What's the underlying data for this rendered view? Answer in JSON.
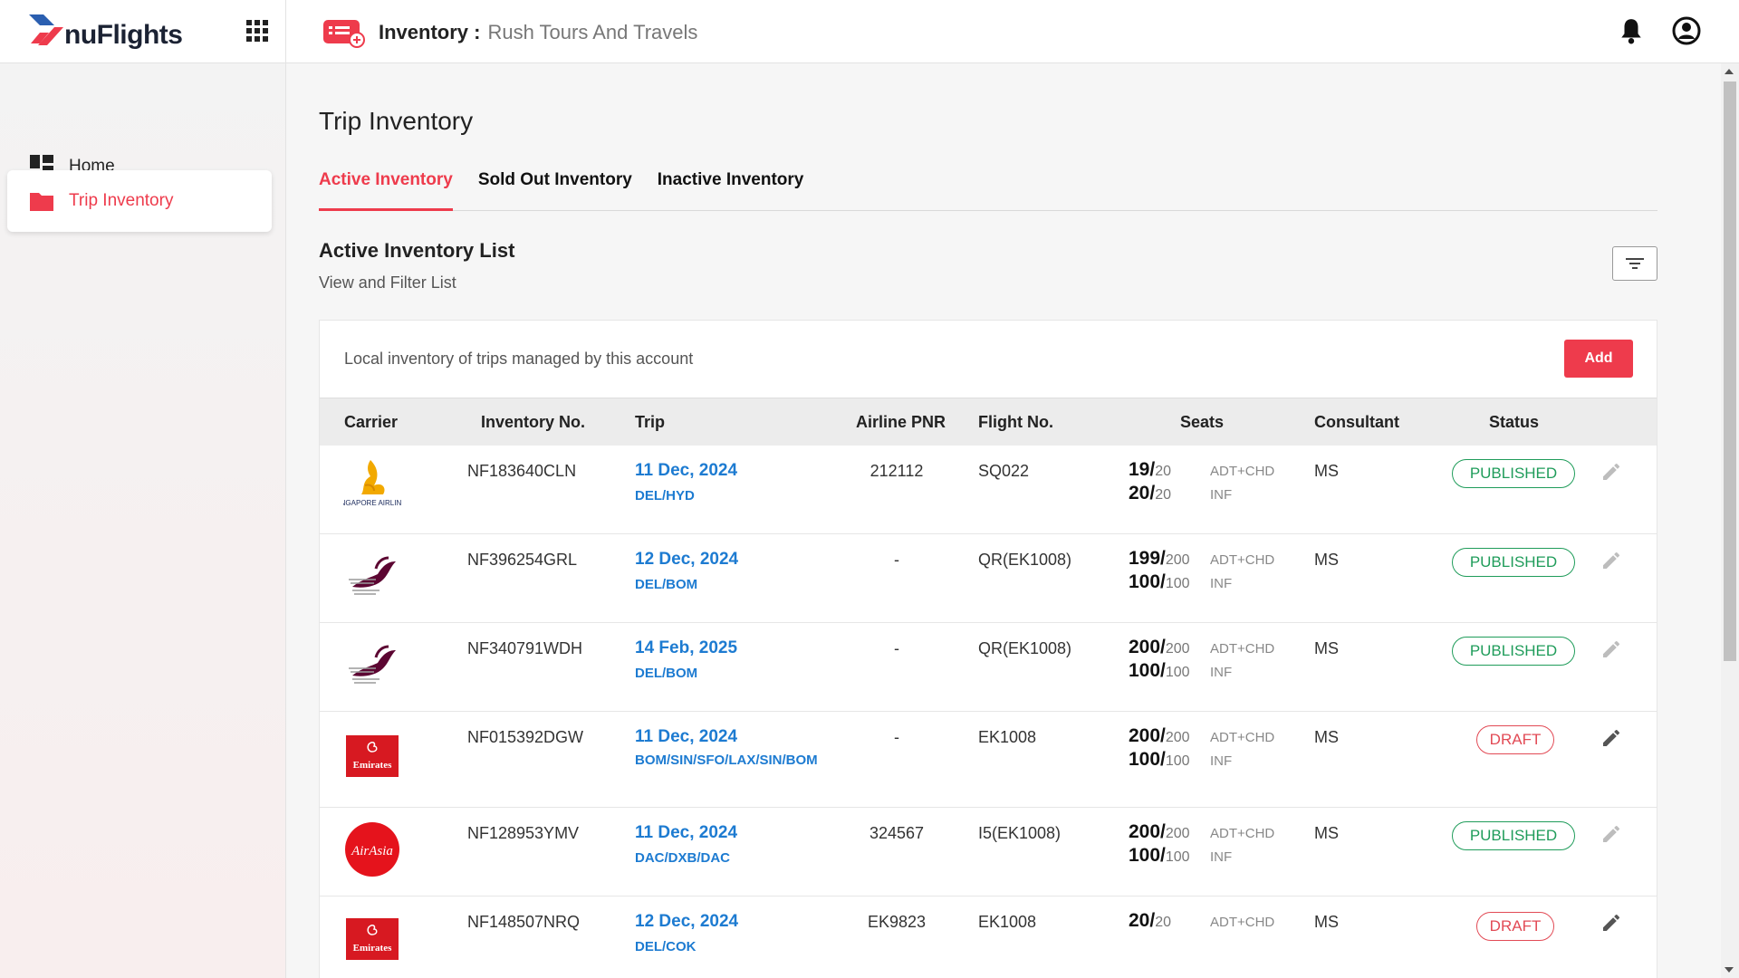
{
  "brand": {
    "name": "nuFlights"
  },
  "header": {
    "title": "Inventory :",
    "subtitle": "Rush Tours And Travels"
  },
  "sidebar": {
    "items": [
      {
        "label": "Home",
        "icon": "dashboard-icon",
        "active": false
      },
      {
        "label": "Trip Inventory",
        "icon": "folder-icon",
        "active": true
      }
    ]
  },
  "page": {
    "title": "Trip Inventory"
  },
  "tabs": [
    {
      "label": "Active Inventory",
      "active": true
    },
    {
      "label": "Sold Out Inventory",
      "active": false
    },
    {
      "label": "Inactive Inventory",
      "active": false
    }
  ],
  "list": {
    "title": "Active Inventory List",
    "subtitle": "View and Filter List",
    "description": "Local inventory of trips managed by this account",
    "add_label": "Add"
  },
  "table": {
    "columns": [
      "Carrier",
      "Inventory No.",
      "Trip",
      "Airline PNR",
      "Flight No.",
      "Seats",
      "Consultant",
      "Status"
    ],
    "rows": [
      {
        "carrier": "Singapore Airlines",
        "carrier_text": "SINGAPORE AIRLINES",
        "inventory_no": "NF183640CLN",
        "date": "11 Dec, 2024",
        "route": "DEL/HYD",
        "pnr": "212112",
        "flight": "SQ022",
        "seats": [
          {
            "avail": "19/",
            "total": "20",
            "type": "ADT+CHD"
          },
          {
            "avail": "20/",
            "total": "20",
            "type": "INF"
          }
        ],
        "consultant": "MS",
        "status": "PUBLISHED"
      },
      {
        "carrier": "Qatar Airways",
        "inventory_no": "NF396254GRL",
        "date": "12 Dec, 2024",
        "route": "DEL/BOM",
        "pnr": "-",
        "flight": "QR(EK1008)",
        "seats": [
          {
            "avail": "199/",
            "total": "200",
            "type": "ADT+CHD"
          },
          {
            "avail": "100/",
            "total": "100",
            "type": "INF"
          }
        ],
        "consultant": "MS",
        "status": "PUBLISHED"
      },
      {
        "carrier": "Qatar Airways",
        "inventory_no": "NF340791WDH",
        "date": "14 Feb, 2025",
        "route": "DEL/BOM",
        "pnr": "-",
        "flight": "QR(EK1008)",
        "seats": [
          {
            "avail": "200/",
            "total": "200",
            "type": "ADT+CHD"
          },
          {
            "avail": "100/",
            "total": "100",
            "type": "INF"
          }
        ],
        "consultant": "MS",
        "status": "PUBLISHED"
      },
      {
        "carrier": "Emirates",
        "carrier_text": "Emirates",
        "inventory_no": "NF015392DGW",
        "date": "11 Dec, 2024",
        "route": "BOM/SIN/SFO/LAX/SIN/BOM",
        "pnr": "-",
        "flight": "EK1008",
        "seats": [
          {
            "avail": "200/",
            "total": "200",
            "type": "ADT+CHD"
          },
          {
            "avail": "100/",
            "total": "100",
            "type": "INF"
          }
        ],
        "consultant": "MS",
        "status": "DRAFT"
      },
      {
        "carrier": "AirAsia",
        "carrier_text": "AirAsia",
        "inventory_no": "NF128953YMV",
        "date": "11 Dec, 2024",
        "route": "DAC/DXB/DAC",
        "pnr": "324567",
        "flight": "I5(EK1008)",
        "seats": [
          {
            "avail": "200/",
            "total": "200",
            "type": "ADT+CHD"
          },
          {
            "avail": "100/",
            "total": "100",
            "type": "INF"
          }
        ],
        "consultant": "MS",
        "status": "PUBLISHED"
      },
      {
        "carrier": "Emirates",
        "carrier_text": "Emirates",
        "inventory_no": "NF148507NRQ",
        "date": "12 Dec, 2024",
        "route": "DEL/COK",
        "pnr": "EK9823",
        "flight": "EK1008",
        "seats": [
          {
            "avail": "20/",
            "total": "20",
            "type": "ADT+CHD"
          }
        ],
        "consultant": "MS",
        "status": "DRAFT"
      }
    ]
  },
  "colors": {
    "accent": "#ee3b4c",
    "link": "#1d7bd1",
    "published": "#1f9c5a",
    "draft": "#e24a55"
  }
}
